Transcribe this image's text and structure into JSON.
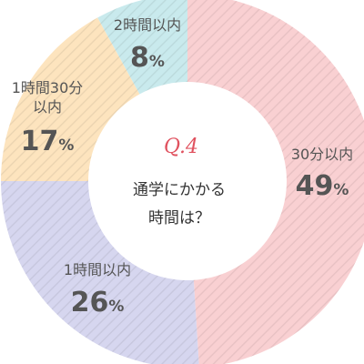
{
  "chart_data": {
    "type": "pie",
    "title": "",
    "center_label": "Q.4",
    "center_text": [
      "通学にかかる",
      "時間は？"
    ],
    "slices": [
      {
        "label": "30分以内",
        "label_lines": [
          "30分以内"
        ],
        "value": 49,
        "display": "49",
        "color": "#f9d0d2"
      },
      {
        "label": "1時間以内",
        "label_lines": [
          "1時間以内"
        ],
        "value": 26,
        "display": "26",
        "color": "#d6d6ef"
      },
      {
        "label": "1時間30分以内",
        "label_lines": [
          "1時間30分",
          "以内"
        ],
        "value": 17,
        "display": "17",
        "color": "#fde4be"
      },
      {
        "label": "2時間以内",
        "label_lines": [
          "2時間以内"
        ],
        "value": 8,
        "display": "8",
        "color": "#c9eaed"
      }
    ],
    "unit": "%",
    "style": "donut with diagonal hatching"
  }
}
